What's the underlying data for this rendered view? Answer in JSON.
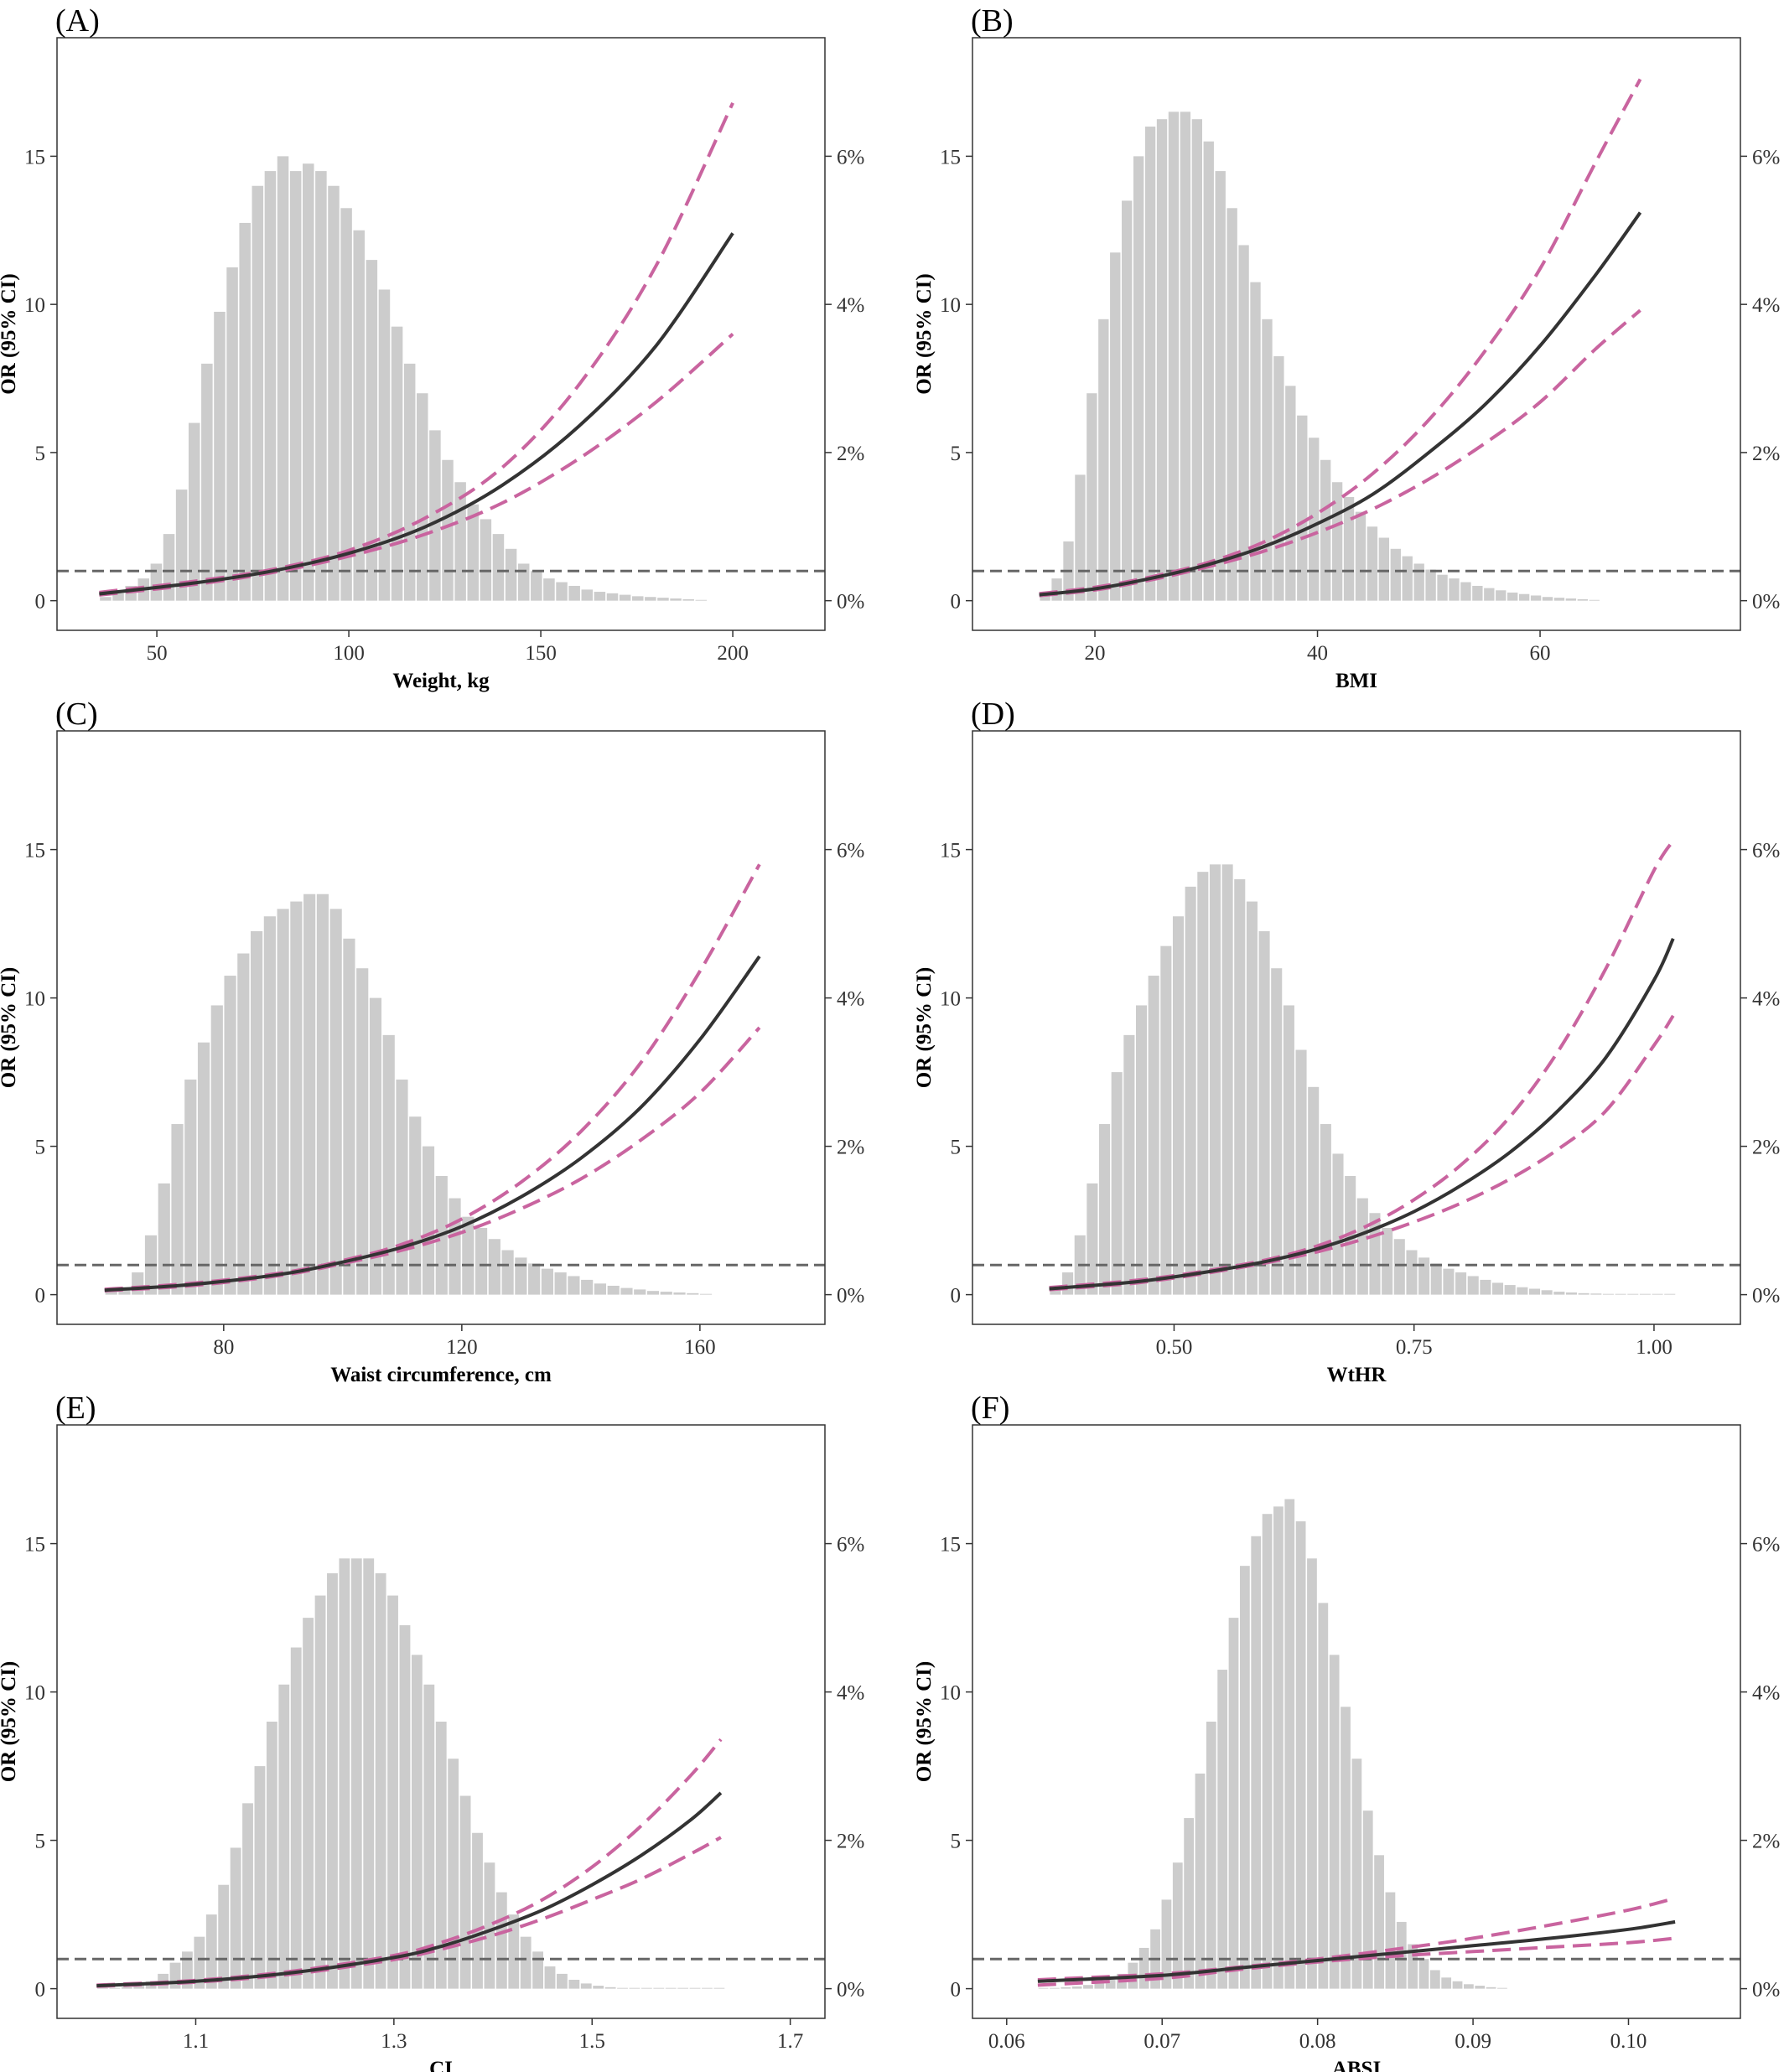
{
  "colors": {
    "bar": "#cccccc",
    "or_line": "#333333",
    "ci_line": "#c9649f",
    "ref_line": "#666666",
    "frame": "#333333"
  },
  "chart_data": [
    {
      "type": "line",
      "panel_label": "(A)",
      "xlabel": "Weight, kg",
      "ylabel": "OR (95% CI)",
      "xlim": [
        24,
        224
      ],
      "ylim": [
        -1,
        19
      ],
      "x_ticks": [
        50,
        100,
        150,
        200
      ],
      "x_tick_labels": [
        "50",
        "100",
        "150",
        "200"
      ],
      "y_ticks": [
        0,
        5,
        10,
        15
      ],
      "y_tick_labels": [
        "0",
        "5",
        "10",
        "15"
      ],
      "y2_ticks": [
        0,
        2,
        4,
        6
      ],
      "y2_tick_labels": [
        "0%",
        "2%",
        "4%",
        "6%"
      ],
      "y2_max_percent": 7.6,
      "reference_or": 1,
      "histogram": {
        "start": 35,
        "width": 3.3,
        "percent": [
          0.05,
          0.1,
          0.2,
          0.3,
          0.5,
          0.9,
          1.5,
          2.4,
          3.2,
          3.9,
          4.5,
          5.1,
          5.6,
          5.8,
          6.0,
          5.8,
          5.9,
          5.8,
          5.6,
          5.3,
          5.0,
          4.6,
          4.2,
          3.7,
          3.2,
          2.8,
          2.3,
          1.9,
          1.6,
          1.3,
          1.1,
          0.9,
          0.7,
          0.5,
          0.4,
          0.3,
          0.25,
          0.2,
          0.15,
          0.12,
          0.1,
          0.08,
          0.06,
          0.05,
          0.04,
          0.03,
          0.02,
          0.01
        ]
      },
      "or_curve": {
        "x": [
          35,
          60,
          80,
          100,
          120,
          140,
          160,
          180,
          200
        ],
        "y": [
          0.23,
          0.6,
          1.0,
          1.6,
          2.5,
          3.9,
          5.9,
          8.6,
          12.4
        ]
      },
      "ci_upper": {
        "x": [
          35,
          60,
          80,
          100,
          120,
          140,
          160,
          180,
          200
        ],
        "y": [
          0.28,
          0.66,
          1.05,
          1.7,
          2.8,
          4.5,
          7.3,
          11.3,
          16.8
        ]
      },
      "ci_lower": {
        "x": [
          35,
          60,
          80,
          100,
          120,
          140,
          160,
          180,
          200
        ],
        "y": [
          0.19,
          0.55,
          0.95,
          1.5,
          2.25,
          3.3,
          4.8,
          6.7,
          9.0
        ]
      }
    },
    {
      "type": "line",
      "panel_label": "(B)",
      "xlabel": "BMI",
      "ylabel": "OR (95% CI)",
      "xlim": [
        9,
        78
      ],
      "ylim": [
        -1,
        19
      ],
      "x_ticks": [
        20,
        40,
        60
      ],
      "x_tick_labels": [
        "20",
        "40",
        "60"
      ],
      "y_ticks": [
        0,
        5,
        10,
        15
      ],
      "y_tick_labels": [
        "0",
        "5",
        "10",
        "15"
      ],
      "y2_ticks": [
        0,
        2,
        4,
        6
      ],
      "y2_tick_labels": [
        "0%",
        "2%",
        "4%",
        "6%"
      ],
      "y2_max_percent": 7.6,
      "reference_or": 1,
      "histogram": {
        "start": 15,
        "width": 1.05,
        "percent": [
          0.1,
          0.3,
          0.8,
          1.7,
          2.8,
          3.8,
          4.7,
          5.4,
          6.0,
          6.4,
          6.5,
          6.6,
          6.6,
          6.5,
          6.2,
          5.8,
          5.3,
          4.8,
          4.3,
          3.8,
          3.3,
          2.9,
          2.5,
          2.2,
          1.9,
          1.6,
          1.4,
          1.2,
          1.0,
          0.85,
          0.7,
          0.6,
          0.5,
          0.42,
          0.35,
          0.3,
          0.25,
          0.2,
          0.17,
          0.14,
          0.11,
          0.09,
          0.07,
          0.05,
          0.04,
          0.03,
          0.02,
          0.01
        ]
      },
      "or_curve": {
        "x": [
          15,
          20,
          25,
          30,
          35,
          40,
          45,
          50,
          55,
          60,
          65,
          69
        ],
        "y": [
          0.2,
          0.4,
          0.75,
          1.2,
          1.8,
          2.6,
          3.6,
          5.0,
          6.6,
          8.6,
          11.0,
          13.1
        ]
      },
      "ci_upper": {
        "x": [
          15,
          20,
          25,
          30,
          35,
          40,
          45,
          50,
          55,
          60,
          65,
          69
        ],
        "y": [
          0.24,
          0.45,
          0.8,
          1.27,
          1.95,
          2.95,
          4.3,
          6.1,
          8.4,
          11.2,
          14.8,
          17.6
        ]
      },
      "ci_lower": {
        "x": [
          15,
          20,
          25,
          30,
          35,
          40,
          45,
          50,
          55,
          60,
          65,
          69
        ],
        "y": [
          0.17,
          0.36,
          0.7,
          1.13,
          1.65,
          2.3,
          3.1,
          4.1,
          5.3,
          6.7,
          8.5,
          9.8
        ]
      }
    },
    {
      "type": "line",
      "panel_label": "(C)",
      "xlabel": "Waist circumference, cm",
      "ylabel": "OR (95% CI)",
      "xlim": [
        52,
        181
      ],
      "ylim": [
        -1,
        19
      ],
      "x_ticks": [
        80,
        120,
        160
      ],
      "x_tick_labels": [
        "80",
        "120",
        "160"
      ],
      "y_ticks": [
        0,
        5,
        10,
        15
      ],
      "y_tick_labels": [
        "0",
        "5",
        "10",
        "15"
      ],
      "y2_ticks": [
        0,
        2,
        4,
        6
      ],
      "y2_tick_labels": [
        "0%",
        "2%",
        "4%",
        "6%"
      ],
      "y2_max_percent": 7.6,
      "reference_or": 1,
      "histogram": {
        "start": 60,
        "width": 2.22,
        "percent": [
          0.05,
          0.1,
          0.3,
          0.8,
          1.5,
          2.3,
          2.9,
          3.4,
          3.9,
          4.3,
          4.6,
          4.9,
          5.1,
          5.2,
          5.3,
          5.4,
          5.4,
          5.2,
          4.8,
          4.4,
          4.0,
          3.5,
          2.9,
          2.4,
          2.0,
          1.6,
          1.3,
          1.05,
          0.9,
          0.75,
          0.6,
          0.5,
          0.42,
          0.35,
          0.3,
          0.25,
          0.2,
          0.15,
          0.12,
          0.09,
          0.07,
          0.05,
          0.04,
          0.03,
          0.02,
          0.01
        ]
      },
      "or_curve": {
        "x": [
          60,
          75,
          90,
          100,
          110,
          120,
          130,
          140,
          150,
          160,
          170
        ],
        "y": [
          0.15,
          0.35,
          0.7,
          1.1,
          1.6,
          2.3,
          3.3,
          4.6,
          6.3,
          8.6,
          11.4
        ]
      },
      "ci_upper": {
        "x": [
          60,
          75,
          90,
          100,
          110,
          120,
          130,
          140,
          150,
          160,
          170
        ],
        "y": [
          0.18,
          0.39,
          0.74,
          1.15,
          1.7,
          2.55,
          3.8,
          5.5,
          7.8,
          10.9,
          14.5
        ]
      },
      "ci_lower": {
        "x": [
          60,
          75,
          90,
          100,
          110,
          120,
          130,
          140,
          150,
          160,
          170
        ],
        "y": [
          0.13,
          0.31,
          0.66,
          1.05,
          1.5,
          2.1,
          2.9,
          3.9,
          5.2,
          6.8,
          9.0
        ]
      }
    },
    {
      "type": "line",
      "panel_label": "(D)",
      "xlabel": "WtHR",
      "ylabel": "OR (95% CI)",
      "xlim": [
        0.29,
        1.09
      ],
      "ylim": [
        -1,
        19
      ],
      "x_ticks": [
        0.5,
        0.75,
        1.0
      ],
      "x_tick_labels": [
        "0.50",
        "0.75",
        "1.00"
      ],
      "y_ticks": [
        0,
        5,
        10,
        15
      ],
      "y_tick_labels": [
        "0",
        "5",
        "10",
        "15"
      ],
      "y2_ticks": [
        0,
        2,
        4,
        6
      ],
      "y2_tick_labels": [
        "0%",
        "2%",
        "4%",
        "6%"
      ],
      "y2_max_percent": 7.6,
      "reference_or": 1,
      "histogram": {
        "start": 0.37,
        "width": 0.0128,
        "percent": [
          0.1,
          0.3,
          0.8,
          1.5,
          2.3,
          3.0,
          3.5,
          3.9,
          4.3,
          4.7,
          5.1,
          5.5,
          5.7,
          5.8,
          5.8,
          5.6,
          5.3,
          4.9,
          4.4,
          3.9,
          3.3,
          2.8,
          2.3,
          1.9,
          1.6,
          1.3,
          1.1,
          0.9,
          0.75,
          0.6,
          0.5,
          0.42,
          0.35,
          0.3,
          0.25,
          0.2,
          0.16,
          0.13,
          0.1,
          0.08,
          0.06,
          0.04,
          0.03,
          0.02,
          0.015,
          0.01,
          0.01,
          0.01,
          0.01,
          0.01,
          0.01
        ]
      },
      "or_curve": {
        "x": [
          0.37,
          0.45,
          0.5,
          0.55,
          0.6,
          0.65,
          0.7,
          0.75,
          0.8,
          0.85,
          0.9,
          0.95,
          1.0,
          1.02
        ],
        "y": [
          0.2,
          0.4,
          0.6,
          0.85,
          1.15,
          1.55,
          2.1,
          2.8,
          3.7,
          4.8,
          6.2,
          8.0,
          10.6,
          12.0
        ]
      },
      "ci_upper": {
        "x": [
          0.37,
          0.45,
          0.5,
          0.55,
          0.6,
          0.65,
          0.7,
          0.75,
          0.8,
          0.85,
          0.9,
          0.95,
          1.0,
          1.02
        ],
        "y": [
          0.24,
          0.45,
          0.64,
          0.89,
          1.2,
          1.65,
          2.3,
          3.2,
          4.4,
          6.0,
          8.2,
          11.0,
          14.3,
          15.3
        ]
      },
      "ci_lower": {
        "x": [
          0.37,
          0.45,
          0.5,
          0.55,
          0.6,
          0.65,
          0.7,
          0.75,
          0.8,
          0.85,
          0.9,
          0.95,
          1.0,
          1.02
        ],
        "y": [
          0.17,
          0.36,
          0.56,
          0.81,
          1.1,
          1.45,
          1.9,
          2.45,
          3.1,
          3.9,
          4.9,
          6.2,
          8.4,
          9.4
        ]
      }
    },
    {
      "type": "line",
      "panel_label": "(E)",
      "xlabel": "CI",
      "ylabel": "OR (95% CI)",
      "xlim": [
        0.96,
        1.735
      ],
      "ylim": [
        -1,
        19
      ],
      "x_ticks": [
        1.1,
        1.3,
        1.5,
        1.7
      ],
      "x_tick_labels": [
        "1.1",
        "1.3",
        "1.5",
        "1.7"
      ],
      "y_ticks": [
        0,
        5,
        10,
        15
      ],
      "y_tick_labels": [
        "0",
        "5",
        "10",
        "15"
      ],
      "y2_ticks": [
        0,
        2,
        4,
        6
      ],
      "y2_tick_labels": [
        "0%",
        "2%",
        "4%",
        "6%"
      ],
      "y2_max_percent": 7.6,
      "reference_or": 1,
      "histogram": {
        "start": 1.0,
        "width": 0.0122,
        "percent": [
          0.01,
          0.01,
          0.02,
          0.05,
          0.1,
          0.2,
          0.35,
          0.5,
          0.7,
          1.0,
          1.4,
          1.9,
          2.5,
          3.0,
          3.6,
          4.1,
          4.6,
          5.0,
          5.3,
          5.6,
          5.8,
          5.8,
          5.8,
          5.6,
          5.3,
          4.9,
          4.5,
          4.1,
          3.6,
          3.1,
          2.6,
          2.1,
          1.7,
          1.3,
          1.0,
          0.7,
          0.5,
          0.3,
          0.2,
          0.12,
          0.07,
          0.04,
          0.02,
          0.01,
          0.01,
          0.01,
          0.01,
          0.01,
          0.01,
          0.01,
          0.01,
          0.01
        ]
      },
      "or_curve": {
        "x": [
          1.0,
          1.1,
          1.2,
          1.3,
          1.35,
          1.4,
          1.45,
          1.5,
          1.55,
          1.6,
          1.63
        ],
        "y": [
          0.1,
          0.25,
          0.55,
          1.05,
          1.45,
          2.0,
          2.65,
          3.5,
          4.5,
          5.7,
          6.6
        ]
      },
      "ci_upper": {
        "x": [
          1.0,
          1.1,
          1.2,
          1.3,
          1.35,
          1.4,
          1.45,
          1.5,
          1.55,
          1.6,
          1.63
        ],
        "y": [
          0.12,
          0.28,
          0.6,
          1.12,
          1.58,
          2.2,
          3.0,
          4.1,
          5.5,
          7.2,
          8.4
        ]
      },
      "ci_lower": {
        "x": [
          1.0,
          1.1,
          1.2,
          1.3,
          1.35,
          1.4,
          1.45,
          1.5,
          1.55,
          1.6,
          1.63
        ],
        "y": [
          0.08,
          0.22,
          0.5,
          0.98,
          1.35,
          1.8,
          2.35,
          3.0,
          3.7,
          4.55,
          5.1
        ]
      }
    },
    {
      "type": "line",
      "panel_label": "(F)",
      "xlabel": "ABSI",
      "ylabel": "OR (95% CI)",
      "xlim": [
        0.0578,
        0.1072
      ],
      "ylim": [
        -1,
        19
      ],
      "x_ticks": [
        0.06,
        0.07,
        0.08,
        0.09,
        0.1
      ],
      "x_tick_labels": [
        "0.06",
        "0.07",
        "0.08",
        "0.09",
        "0.10"
      ],
      "y_ticks": [
        0,
        5,
        10,
        15
      ],
      "y_tick_labels": [
        "0",
        "5",
        "10",
        "15"
      ],
      "y2_ticks": [
        0,
        2,
        4,
        6
      ],
      "y2_tick_labels": [
        "0%",
        "2%",
        "4%",
        "6%"
      ],
      "y2_max_percent": 7.6,
      "reference_or": 1,
      "histogram": {
        "start": 0.062,
        "width": 0.00072,
        "percent": [
          0.01,
          0.01,
          0.02,
          0.03,
          0.05,
          0.08,
          0.12,
          0.2,
          0.35,
          0.55,
          0.8,
          1.2,
          1.7,
          2.3,
          2.9,
          3.6,
          4.3,
          5.0,
          5.7,
          6.1,
          6.4,
          6.5,
          6.6,
          6.3,
          5.8,
          5.2,
          4.5,
          3.8,
          3.1,
          2.4,
          1.8,
          1.3,
          0.9,
          0.6,
          0.4,
          0.25,
          0.15,
          0.1,
          0.06,
          0.04,
          0.02,
          0.01
        ]
      },
      "or_curve": {
        "x": [
          0.062,
          0.07,
          0.075,
          0.08,
          0.085,
          0.09,
          0.095,
          0.1,
          0.103
        ],
        "y": [
          0.25,
          0.45,
          0.7,
          0.95,
          1.2,
          1.45,
          1.7,
          2.0,
          2.25
        ]
      },
      "ci_upper": {
        "x": [
          0.062,
          0.07,
          0.075,
          0.08,
          0.085,
          0.09,
          0.095,
          0.1,
          0.103
        ],
        "y": [
          0.3,
          0.5,
          0.73,
          1.0,
          1.33,
          1.7,
          2.15,
          2.65,
          3.05
        ]
      },
      "ci_lower": {
        "x": [
          0.062,
          0.07,
          0.075,
          0.08,
          0.085,
          0.09,
          0.095,
          0.1,
          0.103
        ],
        "y": [
          0.12,
          0.35,
          0.65,
          0.9,
          1.1,
          1.25,
          1.4,
          1.55,
          1.7
        ]
      }
    }
  ]
}
